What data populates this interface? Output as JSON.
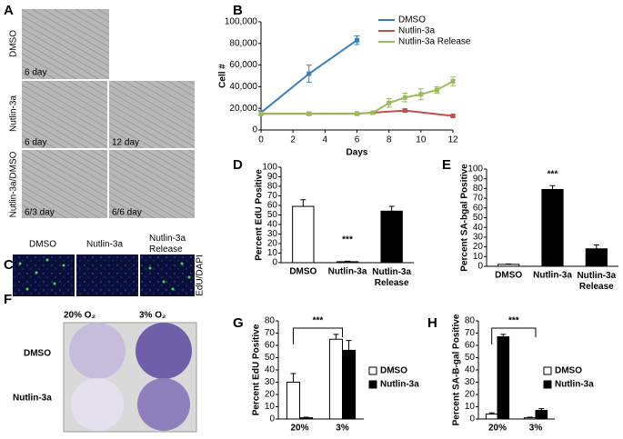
{
  "labels": [
    {
      "text": "A"
    },
    {
      "text": "B"
    },
    {
      "text": "C"
    },
    {
      "text": "D"
    },
    {
      "text": "E"
    },
    {
      "text": "F"
    },
    {
      "text": "G"
    },
    {
      "text": "H"
    },
    {
      "text": "DMSO"
    },
    {
      "text": "Nutlin-3a"
    },
    {
      "text": "Nutlin-3a/DMSO"
    },
    {
      "text": "6 day"
    },
    {
      "text": "6 day"
    },
    {
      "text": "12 day"
    },
    {
      "text": "6/3 day"
    },
    {
      "text": "6/6 day"
    },
    {
      "text": "DMSO"
    },
    {
      "text": "Nutlin-3a"
    },
    {
      "text": "Nutlin-3a Release"
    },
    {
      "text": "EdU/DAPI"
    },
    {
      "text": "20% O₂"
    },
    {
      "text": "3% O₂"
    },
    {
      "text": "DMSO"
    },
    {
      "text": "Nutlin-3a"
    }
  ],
  "chart_data": [
    {
      "type": "line",
      "y_label": "Cell #",
      "x_label": "Days",
      "xlim": [
        0,
        12
      ],
      "xticks": [
        0,
        2,
        4,
        6,
        8,
        10,
        12
      ],
      "ylim": [
        0,
        100000
      ],
      "yticks": [
        0,
        {
          "value": 20000,
          "label": "20,000"
        },
        {
          "value": 40000,
          "label": "40,000"
        },
        {
          "value": 60000,
          "label": "60,000"
        },
        {
          "value": 80000,
          "label": "80,000"
        },
        {
          "value": 100000,
          "label": "100,000"
        }
      ],
      "series": [
        {
          "name": "DMSO",
          "color": "#3a7ebf",
          "x": [
            0,
            3,
            6
          ],
          "values": [
            16000,
            52000,
            83000
          ],
          "errors": [
            2000,
            8000,
            4000
          ]
        },
        {
          "name": "Nutlin-3a",
          "color": "#c0504d",
          "x": [
            0,
            3,
            6,
            9,
            12
          ],
          "values": [
            15000,
            15000,
            15000,
            18000,
            13000
          ],
          "errors": [
            1000,
            1000,
            1000,
            1500,
            1000
          ]
        },
        {
          "name": "Nutlin-3a Release",
          "color": "#9bbb59",
          "x": [
            0,
            3,
            6,
            7,
            8,
            9,
            10,
            11,
            12
          ],
          "values": [
            15000,
            15000,
            15000,
            16000,
            25000,
            30000,
            33000,
            37000,
            45000
          ],
          "errors": [
            1000,
            1000,
            1000,
            1500,
            4000,
            4000,
            5000,
            3000,
            4000
          ]
        }
      ]
    },
    {
      "type": "bar",
      "y_label": "Percent EdU Positive",
      "annotation": "***",
      "ylim": [
        0,
        100
      ],
      "yticks": [
        0,
        10,
        20,
        30,
        40,
        50,
        60,
        70,
        80,
        90,
        100
      ],
      "categories": [
        "DMSO",
        "Nutlin-3a",
        "Nutlin-3a Release"
      ],
      "values": [
        59,
        1,
        54
      ],
      "errors": [
        7,
        0.5,
        5
      ],
      "colors": [
        "#ffffff",
        "#ffffff",
        "#000000"
      ]
    },
    {
      "type": "bar",
      "y_label": "Percent SA-bgal Positive",
      "annotation": "***",
      "ylim": [
        0,
        100
      ],
      "yticks": [
        0,
        10,
        20,
        30,
        40,
        50,
        60,
        70,
        80,
        90,
        100
      ],
      "categories": [
        "DMSO",
        "Nutlin-3a",
        "Nutlin-3a Release"
      ],
      "values": [
        2,
        79,
        18
      ],
      "errors": [
        0.5,
        4,
        4
      ],
      "colors": [
        "#ffffff",
        "#000000",
        "#000000"
      ]
    },
    {
      "type": "bar",
      "y_label": "Percent EdU Positive",
      "annotation": "***",
      "ylim": [
        0,
        80
      ],
      "yticks": [
        0,
        10,
        20,
        30,
        40,
        50,
        60,
        70,
        80
      ],
      "categories": [
        "20%",
        "3%"
      ],
      "series": [
        {
          "name": "DMSO",
          "color": "#ffffff",
          "values": [
            30,
            65
          ],
          "errors": [
            7,
            4
          ]
        },
        {
          "name": "Nutlin-3a",
          "color": "#000000",
          "values": [
            1,
            56
          ],
          "errors": [
            0.5,
            8
          ]
        }
      ]
    },
    {
      "type": "bar",
      "y_label": "Percent SA-B-gal Positive",
      "annotation": "***",
      "ylim": [
        0,
        80
      ],
      "yticks": [
        0,
        10,
        20,
        30,
        40,
        50,
        60,
        70,
        80
      ],
      "categories": [
        "20%",
        "3%"
      ],
      "series": [
        {
          "name": "DMSO",
          "color": "#ffffff",
          "values": [
            4,
            1
          ],
          "errors": [
            1,
            0.5
          ]
        },
        {
          "name": "Nutlin-3a",
          "color": "#000000",
          "values": [
            67,
            7
          ],
          "errors": [
            2,
            1.5
          ]
        }
      ]
    }
  ]
}
